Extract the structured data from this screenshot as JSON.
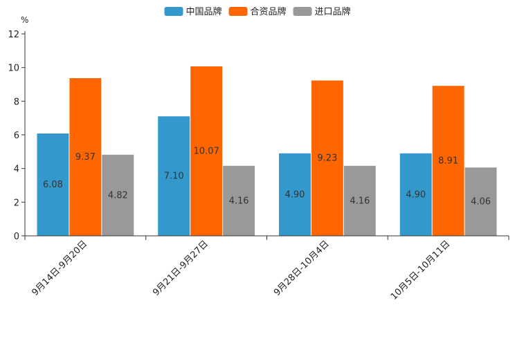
{
  "chart_data": {
    "type": "bar",
    "title": "",
    "xlabel": "",
    "ylabel": "%",
    "ylim": [
      0,
      12
    ],
    "yticks": [
      0,
      2,
      4,
      6,
      8,
      10,
      12
    ],
    "grid": false,
    "legend_position": "top-center",
    "categories": [
      "9月14日-9月20日",
      "9月21日-9月27日",
      "9月28日-10月4日",
      "10月5日-10月11日"
    ],
    "series": [
      {
        "name": "中国品牌",
        "color": "#3399cc",
        "values": [
          6.08,
          7.1,
          4.9,
          4.9
        ],
        "labels": [
          "6.08",
          "7.10",
          "4.90",
          "4.90"
        ]
      },
      {
        "name": "合资品牌",
        "color": "#ff6600",
        "values": [
          9.37,
          10.07,
          9.23,
          8.91
        ],
        "labels": [
          "9.37",
          "10.07",
          "9.23",
          "8.91"
        ]
      },
      {
        "name": "进口品牌",
        "color": "#999999",
        "values": [
          4.82,
          4.16,
          4.16,
          4.06
        ],
        "labels": [
          "4.82",
          "4.16",
          "4.16",
          "4.06"
        ]
      }
    ]
  }
}
